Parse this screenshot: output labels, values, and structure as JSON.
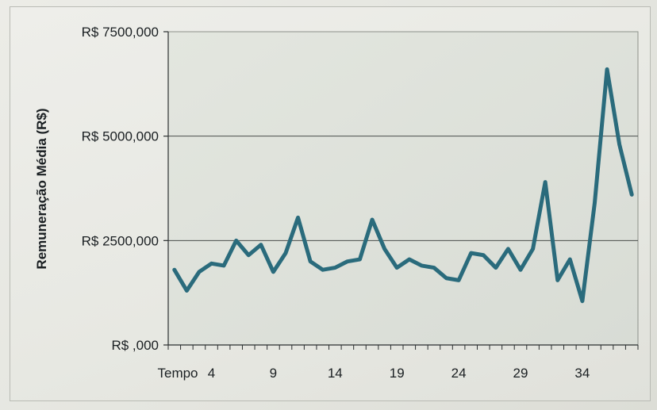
{
  "chart_data": {
    "type": "line",
    "title": "",
    "xlabel": "Tempo",
    "ylabel": "Remuneração Média (R$)",
    "ylim": [
      0,
      7500
    ],
    "yticks": [
      0,
      2500,
      5000,
      7500
    ],
    "ytick_labels": [
      "R$ ,000",
      "R$ 2500,000",
      "R$ 5000,000",
      "R$ 7500,000"
    ],
    "xticks": [
      4,
      9,
      14,
      19,
      24,
      29,
      34
    ],
    "xtick_labels": [
      "4",
      "9",
      "14",
      "19",
      "24",
      "29",
      "34"
    ],
    "x": [
      1,
      2,
      3,
      4,
      5,
      6,
      7,
      8,
      9,
      10,
      11,
      12,
      13,
      14,
      15,
      16,
      17,
      18,
      19,
      20,
      21,
      22,
      23,
      24,
      25,
      26,
      27,
      28,
      29,
      30,
      31,
      32,
      33,
      34,
      35,
      36,
      37,
      38
    ],
    "series": [
      {
        "values": [
          1800,
          1300,
          1750,
          1950,
          1900,
          2500,
          2150,
          2400,
          1750,
          2200,
          3050,
          2000,
          1800,
          1850,
          2000,
          2050,
          3000,
          2300,
          1850,
          2050,
          1900,
          1850,
          1600,
          1550,
          2200,
          2150,
          1850,
          2300,
          1800,
          2300,
          3900,
          1550,
          2050,
          1050,
          3400,
          6600,
          4800,
          3600
        ],
        "color": "#2a6b7c"
      }
    ],
    "grid": "horizontal",
    "legend": "none"
  }
}
